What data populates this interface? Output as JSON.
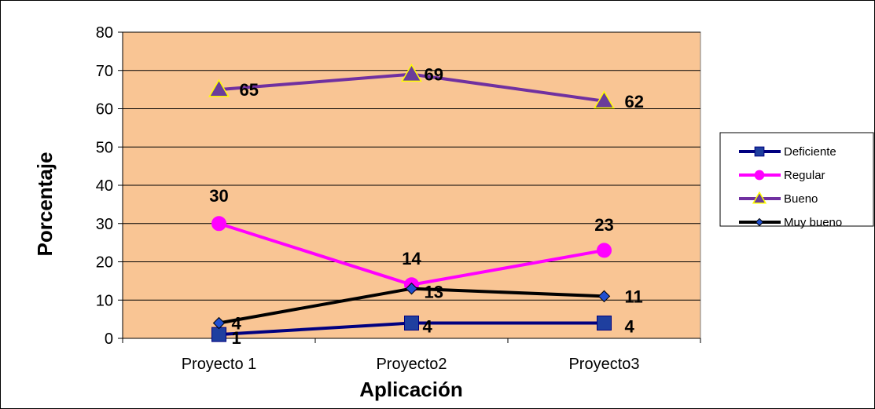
{
  "chart_data": {
    "type": "line",
    "title": "",
    "xlabel": "Aplicación",
    "ylabel": "Porcentaje",
    "categories": [
      "Proyecto 1",
      "Proyecto2",
      "Proyecto3"
    ],
    "ylim": [
      0,
      80
    ],
    "yticks": [
      "0",
      "10",
      "20",
      "30",
      "40",
      "50",
      "60",
      "70",
      "80"
    ],
    "grid": true,
    "legend_position": "right",
    "plot_background": "#F9C594",
    "series": [
      {
        "name": "Deficiente",
        "values": [
          1,
          4,
          4
        ],
        "labels": [
          "1",
          "4",
          "4"
        ],
        "color": "#000080",
        "marker": "square",
        "marker_fill": "#1F3F9F"
      },
      {
        "name": "Regular",
        "values": [
          30,
          14,
          23
        ],
        "labels": [
          "30",
          "14",
          "23"
        ],
        "color": "#FF00FF",
        "marker": "circle",
        "marker_fill": "#FF00FF"
      },
      {
        "name": "Bueno",
        "values": [
          65,
          69,
          62
        ],
        "labels": [
          "65",
          "69",
          "62"
        ],
        "color": "#7030A0",
        "marker": "triangle",
        "marker_fill": "#6A3D9A",
        "marker_stroke": "#FFFF00"
      },
      {
        "name": "Muy bueno",
        "values": [
          4,
          13,
          11
        ],
        "labels": [
          "4",
          "13",
          "11"
        ],
        "color": "#000000",
        "marker": "diamond",
        "marker_fill": "#1F4FD0"
      }
    ]
  }
}
